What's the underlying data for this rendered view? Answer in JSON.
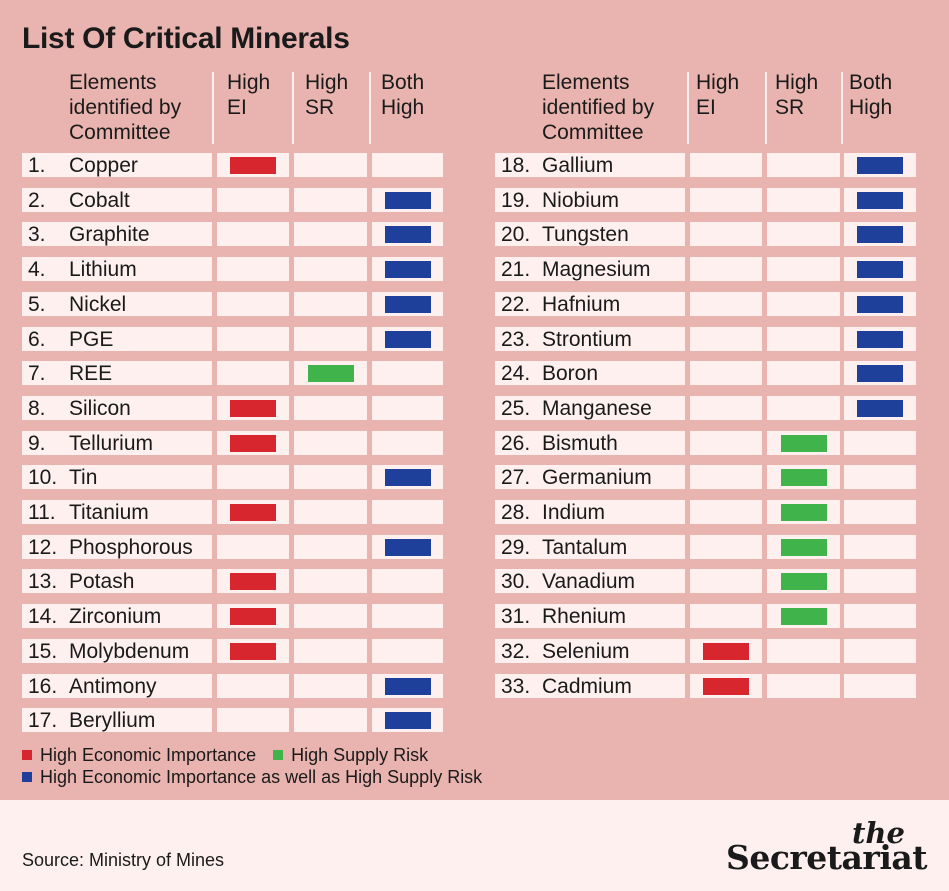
{
  "title": "List Of Critical Minerals",
  "headers": {
    "elements": [
      "Elements",
      "identified by",
      "Committee"
    ],
    "high_ei": [
      "High",
      "EI"
    ],
    "high_sr": [
      "High",
      "SR"
    ],
    "both_high": [
      "Both",
      "High"
    ]
  },
  "colors": {
    "High EI": "#d7262e",
    "High SR": "#40b34a",
    "Both High": "#1e3f9a"
  },
  "chart_data": {
    "type": "table",
    "columns": [
      "Elements identified by Committee",
      "High EI",
      "High SR",
      "Both High"
    ],
    "rows": [
      {
        "num": "1.",
        "name": "Copper",
        "category": "High EI"
      },
      {
        "num": "2.",
        "name": "Cobalt",
        "category": "Both High"
      },
      {
        "num": "3.",
        "name": "Graphite",
        "category": "Both High"
      },
      {
        "num": "4.",
        "name": "Lithium",
        "category": "Both High"
      },
      {
        "num": "5.",
        "name": "Nickel",
        "category": "Both High"
      },
      {
        "num": "6.",
        "name": "PGE",
        "category": "Both High"
      },
      {
        "num": "7.",
        "name": "REE",
        "category": "High SR"
      },
      {
        "num": "8.",
        "name": "Silicon",
        "category": "High EI"
      },
      {
        "num": "9.",
        "name": "Tellurium",
        "category": "High EI"
      },
      {
        "num": "10.",
        "name": "Tin",
        "category": "Both High"
      },
      {
        "num": "11.",
        "name": "Titanium",
        "category": "High EI"
      },
      {
        "num": "12.",
        "name": "Phosphorous",
        "category": "Both High"
      },
      {
        "num": "13.",
        "name": "Potash",
        "category": "High EI"
      },
      {
        "num": "14.",
        "name": "Zirconium",
        "category": "High EI"
      },
      {
        "num": "15.",
        "name": "Molybdenum",
        "category": "High EI"
      },
      {
        "num": "16.",
        "name": "Antimony",
        "category": "Both High"
      },
      {
        "num": "17.",
        "name": "Beryllium",
        "category": "Both High"
      },
      {
        "num": "18.",
        "name": "Gallium",
        "category": "Both High"
      },
      {
        "num": "19.",
        "name": "Niobium",
        "category": "Both High"
      },
      {
        "num": "20.",
        "name": "Tungsten",
        "category": "Both High"
      },
      {
        "num": "21.",
        "name": "Magnesium",
        "category": "Both High"
      },
      {
        "num": "22.",
        "name": "Hafnium",
        "category": "Both High"
      },
      {
        "num": "23.",
        "name": "Strontium",
        "category": "Both High"
      },
      {
        "num": "24.",
        "name": "Boron",
        "category": "Both High"
      },
      {
        "num": "25.",
        "name": "Manganese",
        "category": "Both High"
      },
      {
        "num": "26.",
        "name": "Bismuth",
        "category": "High SR"
      },
      {
        "num": "27.",
        "name": "Germanium",
        "category": "High SR"
      },
      {
        "num": "28.",
        "name": "Indium",
        "category": "High SR"
      },
      {
        "num": "29.",
        "name": "Tantalum",
        "category": "High SR"
      },
      {
        "num": "30.",
        "name": "Vanadium",
        "category": "High SR"
      },
      {
        "num": "31.",
        "name": "Rhenium",
        "category": "High SR"
      },
      {
        "num": "32.",
        "name": "Selenium",
        "category": "High EI"
      },
      {
        "num": "33.",
        "name": "Cadmium",
        "category": "High EI"
      }
    ]
  },
  "legend": {
    "high_ei": "High Economic Importance",
    "high_sr": "High Supply Risk",
    "both_high": "High Economic Importance as well as High Supply Risk"
  },
  "source": "Source: Ministry of Mines",
  "logo": {
    "the": "the",
    "name": "Secretariat"
  }
}
